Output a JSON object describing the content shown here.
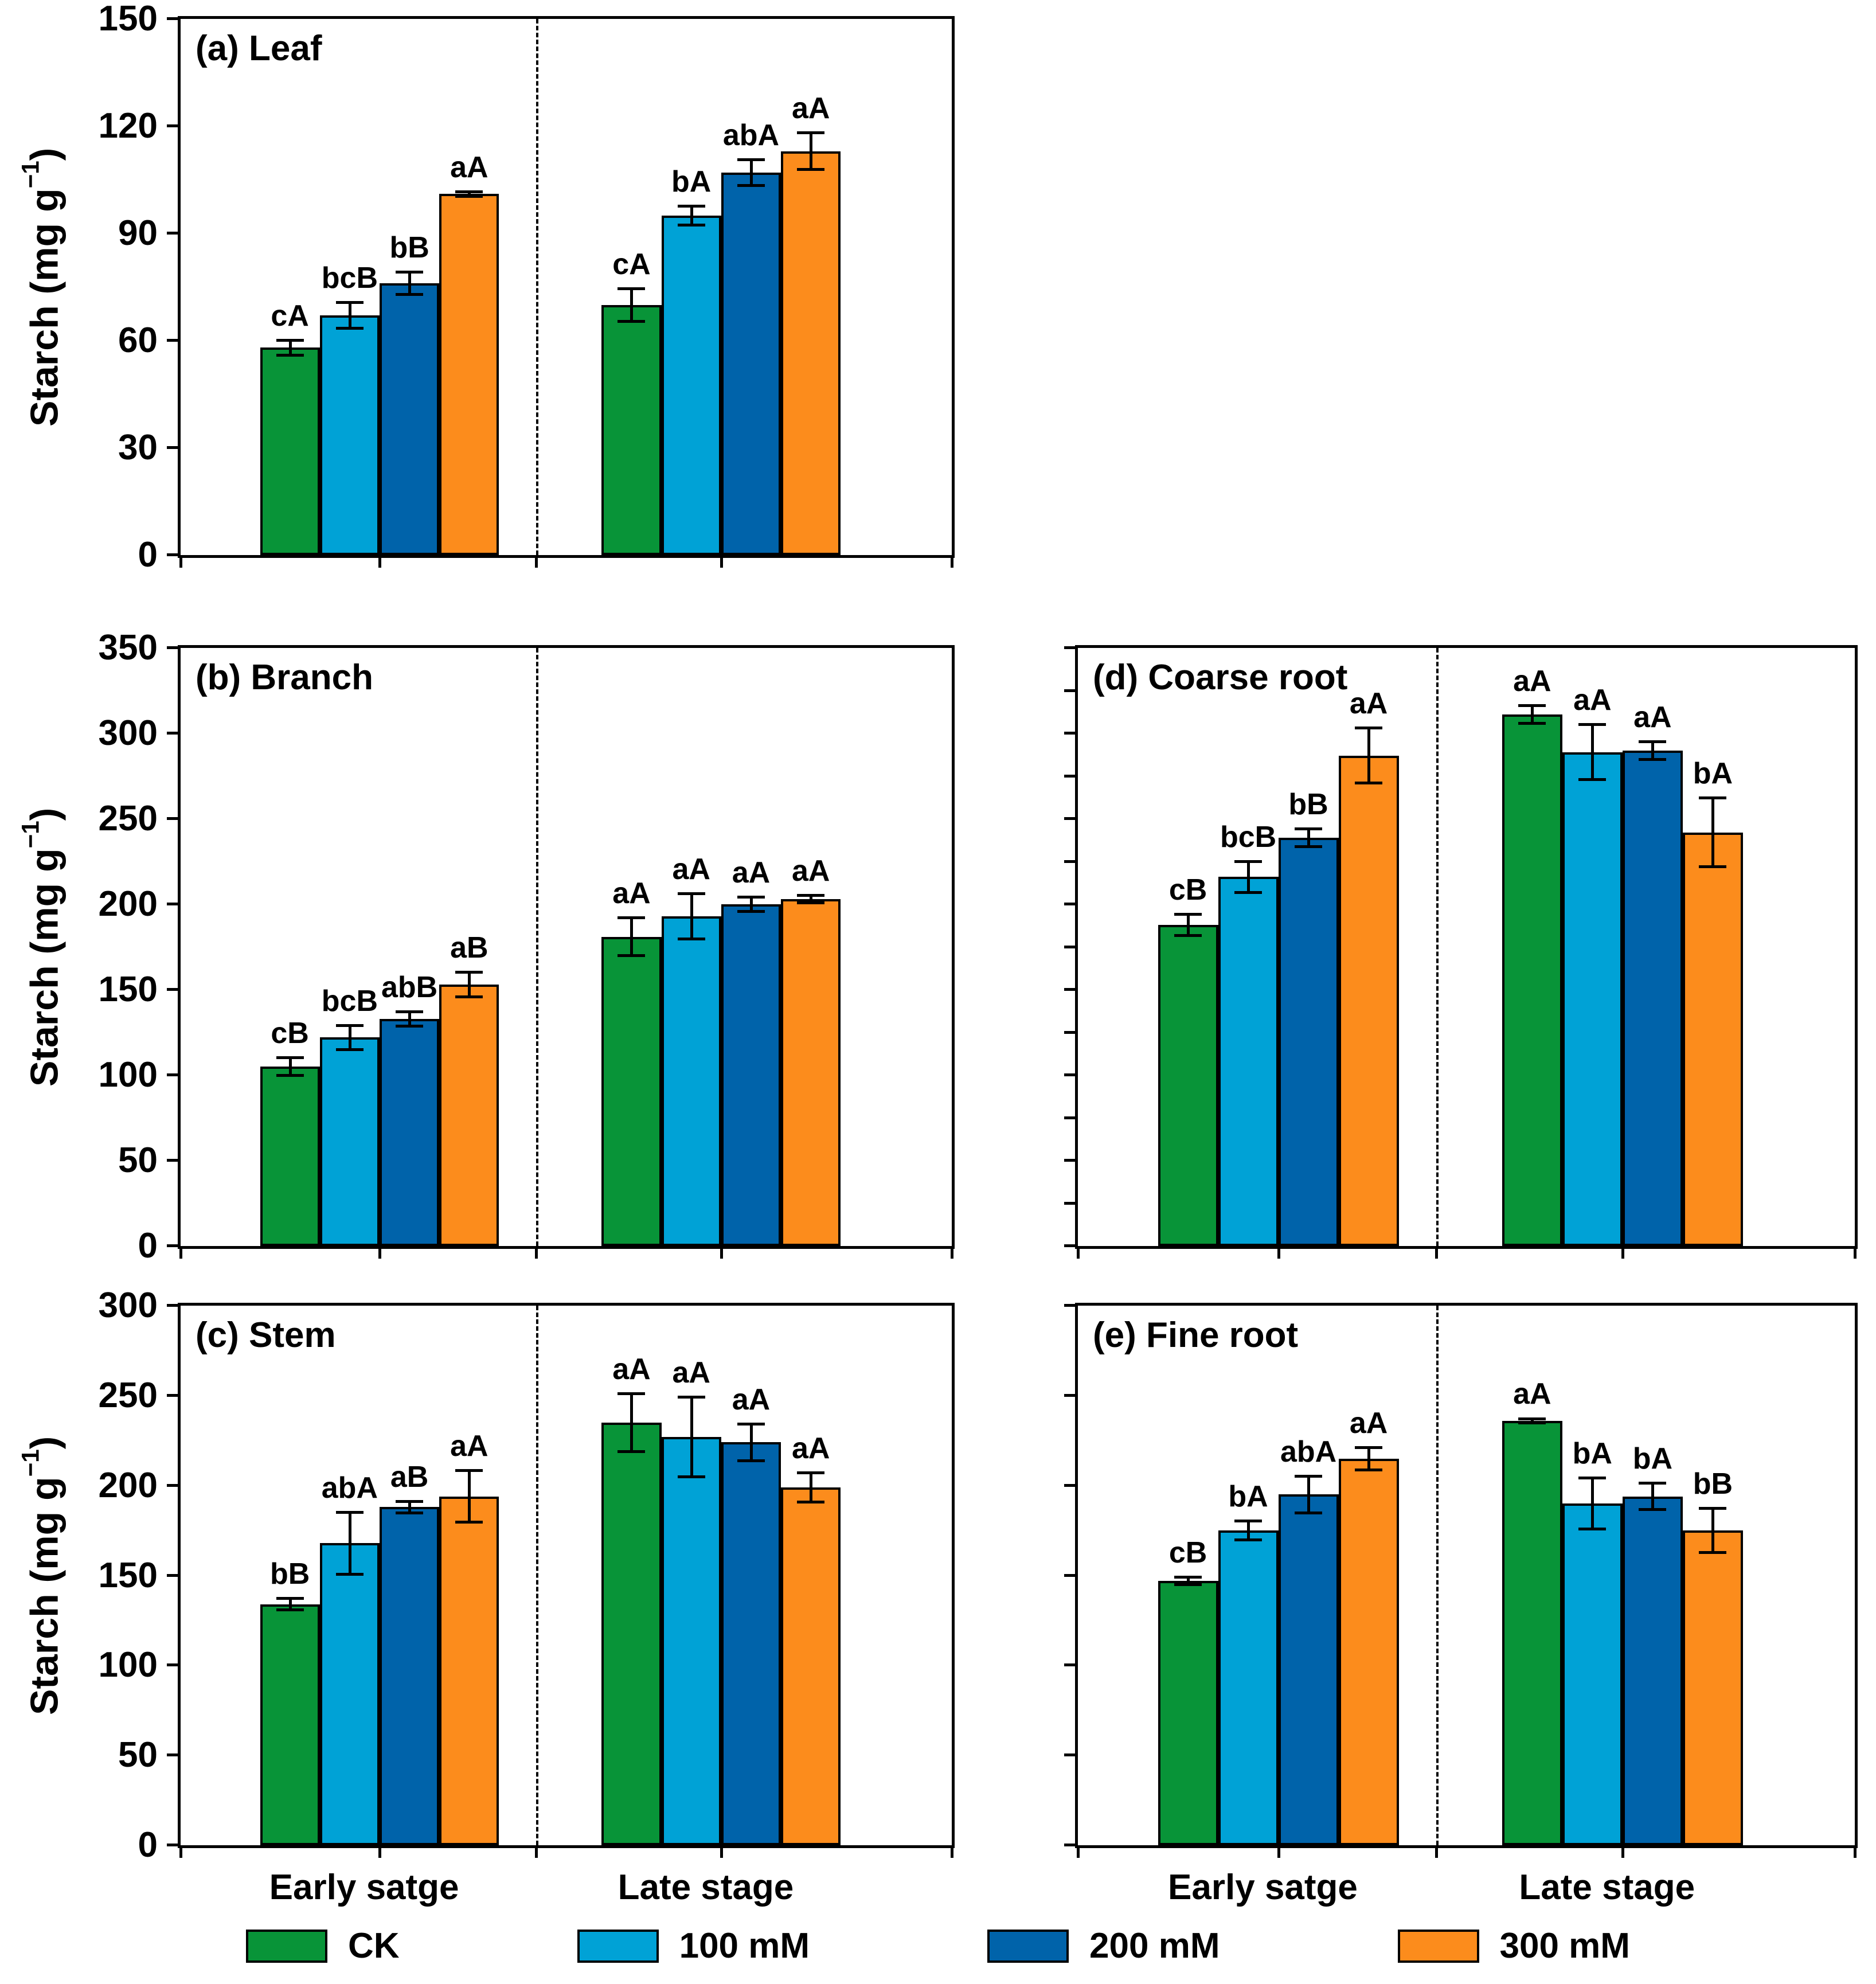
{
  "figure": {
    "ylabel": {
      "prefix": "Starch (mg g",
      "sup": "−1",
      "suffix": ")"
    },
    "xgroups": [
      "Early satge",
      "Late stage"
    ],
    "colors": {
      "ck": "#089438",
      "mM100": "#00A2D6",
      "mM200": "#0063AA",
      "mM300": "#FC8C1C"
    },
    "legend": [
      {
        "label": "CK",
        "color": "#089438"
      },
      {
        "label": "100 mM",
        "color": "#00A2D6"
      },
      {
        "label": "200 mM",
        "color": "#0063AA"
      },
      {
        "label": "300 mM",
        "color": "#FC8C1C"
      }
    ]
  },
  "chart_data": [
    {
      "id": "a",
      "type": "bar",
      "title": "(a) Leaf",
      "ylabel": "Starch (mg g−1)",
      "ylim": [
        0,
        150
      ],
      "ytick_step": 30,
      "ytick_labels_shown": true,
      "grid": false,
      "categories": [
        "Early satge",
        "Late stage"
      ],
      "series": [
        {
          "name": "CK",
          "values": [
            58,
            70
          ],
          "errors": [
            2.5,
            5
          ],
          "sig": [
            "cA",
            "cA"
          ]
        },
        {
          "name": "100 mM",
          "values": [
            67,
            95
          ],
          "errors": [
            4,
            3
          ],
          "sig": [
            "bcB",
            "bA"
          ]
        },
        {
          "name": "200 mM",
          "values": [
            76,
            107
          ],
          "errors": [
            3.5,
            4
          ],
          "sig": [
            "bB",
            "abA"
          ]
        },
        {
          "name": "300 mM",
          "values": [
            101,
            113
          ],
          "errors": [
            1,
            5.5
          ],
          "sig": [
            "aA",
            "aA"
          ]
        }
      ]
    },
    {
      "id": "b",
      "type": "bar",
      "title": "(b) Branch",
      "ylabel": "Starch (mg g−1)",
      "ylim": [
        0,
        350
      ],
      "ytick_step": 50,
      "ytick_labels_shown": true,
      "grid": false,
      "categories": [
        "Early satge",
        "Late stage"
      ],
      "series": [
        {
          "name": "CK",
          "values": [
            105,
            181
          ],
          "errors": [
            6,
            12
          ],
          "sig": [
            "cB",
            "aA"
          ]
        },
        {
          "name": "100 mM",
          "values": [
            122,
            193
          ],
          "errors": [
            8,
            14
          ],
          "sig": [
            "bcB",
            "aA"
          ]
        },
        {
          "name": "200 mM",
          "values": [
            133,
            200
          ],
          "errors": [
            5,
            5
          ],
          "sig": [
            "abB",
            "aA"
          ]
        },
        {
          "name": "300 mM",
          "values": [
            153,
            203
          ],
          "errors": [
            8,
            3
          ],
          "sig": [
            "aB",
            "aA"
          ]
        }
      ]
    },
    {
      "id": "c",
      "type": "bar",
      "title": "(c) Stem",
      "ylabel": "Starch (mg g−1)",
      "ylim": [
        0,
        300
      ],
      "ytick_step": 50,
      "ytick_labels_shown": true,
      "grid": false,
      "categories": [
        "Early satge",
        "Late stage"
      ],
      "series": [
        {
          "name": "CK",
          "values": [
            134,
            235
          ],
          "errors": [
            4,
            17
          ],
          "sig": [
            "bB",
            "aA"
          ]
        },
        {
          "name": "100 mM",
          "values": [
            168,
            227
          ],
          "errors": [
            18,
            23
          ],
          "sig": [
            "abA",
            "aA"
          ]
        },
        {
          "name": "200 mM",
          "values": [
            188,
            224
          ],
          "errors": [
            4,
            11
          ],
          "sig": [
            "aB",
            "aA"
          ]
        },
        {
          "name": "300 mM",
          "values": [
            194,
            199
          ],
          "errors": [
            15,
            9
          ],
          "sig": [
            "aA",
            "aA"
          ]
        }
      ]
    },
    {
      "id": "d",
      "type": "bar",
      "title": "(d) Coarse root",
      "ylabel": "",
      "ylim": [
        0,
        350
      ],
      "ytick_step": 25,
      "ytick_labels_shown": false,
      "grid": false,
      "categories": [
        "Early satge",
        "Late stage"
      ],
      "series": [
        {
          "name": "CK",
          "values": [
            188,
            311
          ],
          "errors": [
            7,
            6
          ],
          "sig": [
            "cB",
            "aA"
          ]
        },
        {
          "name": "100 mM",
          "values": [
            216,
            289
          ],
          "errors": [
            10,
            17
          ],
          "sig": [
            "bcB",
            "aA"
          ]
        },
        {
          "name": "200 mM",
          "values": [
            239,
            290
          ],
          "errors": [
            6,
            6
          ],
          "sig": [
            "bB",
            "aA"
          ]
        },
        {
          "name": "300 mM",
          "values": [
            287,
            242
          ],
          "errors": [
            17,
            21
          ],
          "sig": [
            "aA",
            "bA"
          ]
        }
      ]
    },
    {
      "id": "e",
      "type": "bar",
      "title": "(e) Fine root",
      "ylabel": "",
      "ylim": [
        0,
        300
      ],
      "ytick_step": 50,
      "ytick_labels_shown": false,
      "grid": false,
      "categories": [
        "Early satge",
        "Late stage"
      ],
      "series": [
        {
          "name": "CK",
          "values": [
            147,
            236
          ],
          "errors": [
            3,
            2
          ],
          "sig": [
            "cB",
            "aA"
          ]
        },
        {
          "name": "100 mM",
          "values": [
            175,
            190
          ],
          "errors": [
            6,
            15
          ],
          "sig": [
            "bA",
            "bA"
          ]
        },
        {
          "name": "200 mM",
          "values": [
            195,
            194
          ],
          "errors": [
            11,
            8
          ],
          "sig": [
            "abA",
            "bA"
          ]
        },
        {
          "name": "300 mM",
          "values": [
            215,
            175
          ],
          "errors": [
            7,
            13
          ],
          "sig": [
            "aA",
            "bB"
          ]
        }
      ]
    }
  ]
}
